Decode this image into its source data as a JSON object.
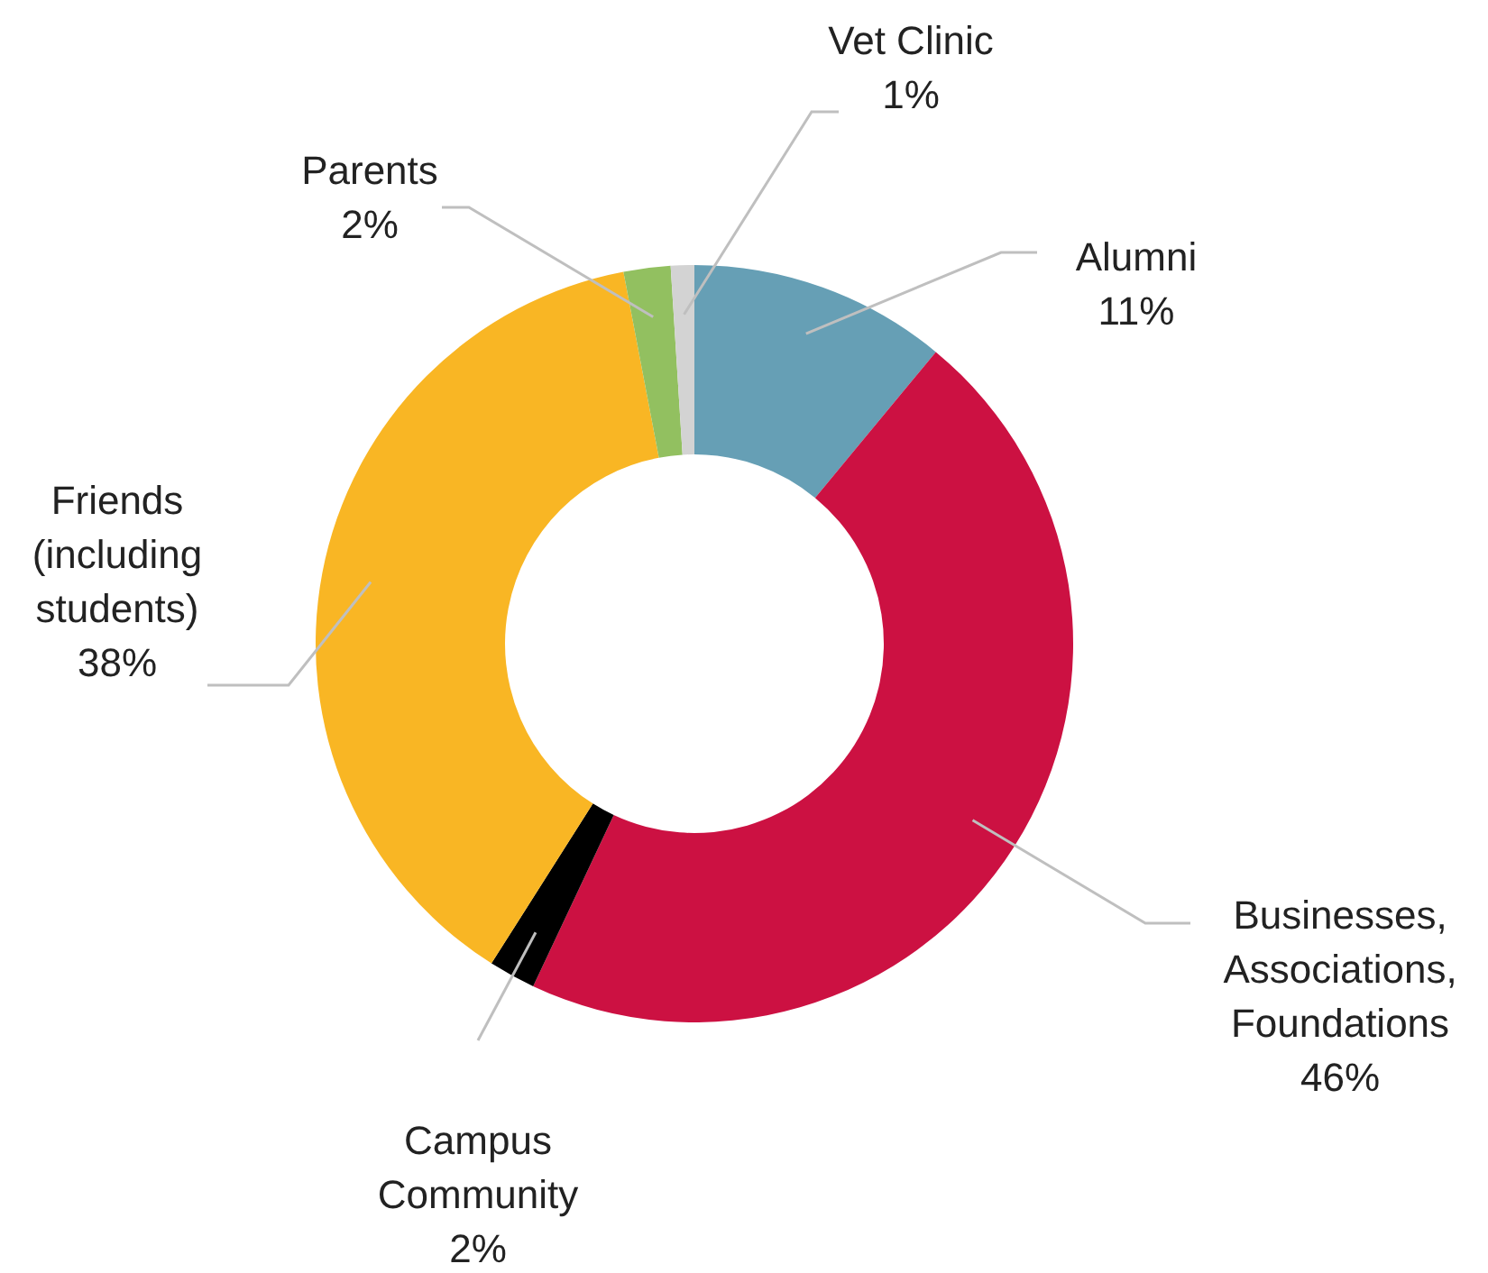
{
  "chart_data": {
    "type": "donut",
    "categories": [
      "Alumni",
      "Businesses, Associations, Foundations",
      "Campus Community",
      "Friends (including students)",
      "Parents",
      "Vet Clinic"
    ],
    "values": [
      11,
      46,
      2,
      38,
      2,
      1
    ],
    "value_labels": [
      "11%",
      "46%",
      "2%",
      "38%",
      "2%",
      "1%"
    ],
    "colors": [
      "#669fb5",
      "#cc1142",
      "#000000",
      "#f9b624",
      "#92c060",
      "#d3d3d3"
    ]
  }
}
